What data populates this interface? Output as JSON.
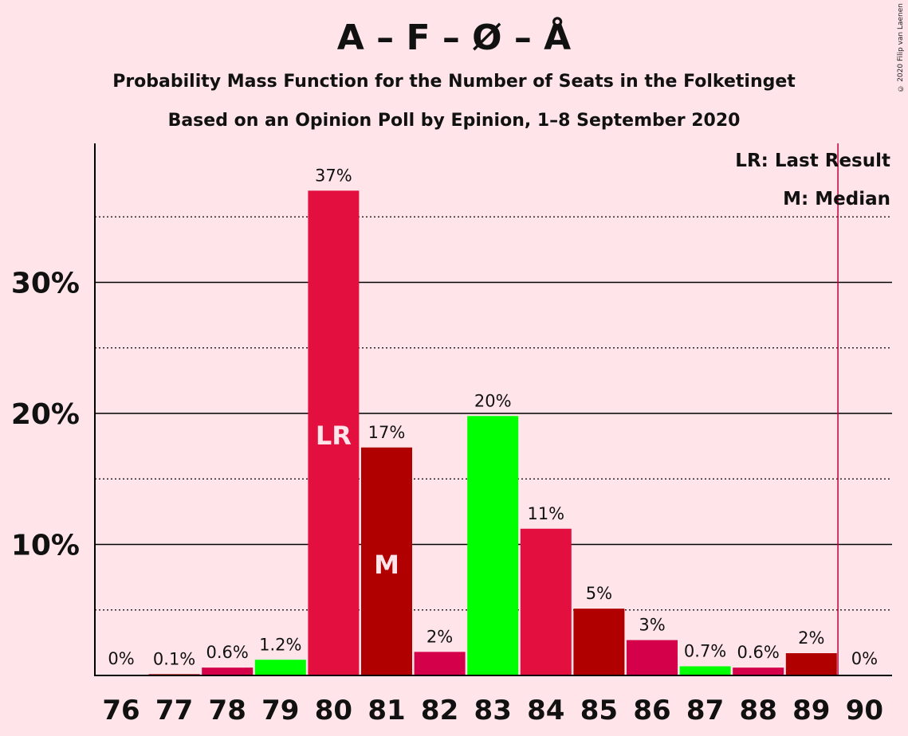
{
  "title": "A – F – Ø – Å",
  "subtitle1": "Probability Mass Function for the Number of Seats in the Folketinget",
  "subtitle2": "Based on an Opinion Poll by Epinion, 1–8 September 2020",
  "credit": "© 2020 Filip van Laenen",
  "legend": {
    "lr": "LR: Last Result",
    "median": "M: Median"
  },
  "colors": {
    "background": "#FFE5EA",
    "red": "#E3103F",
    "darkred": "#B00000",
    "green": "#00FF00",
    "crimson": "#D4004A",
    "lr_line": "#C0003C"
  },
  "chart_data": {
    "type": "bar",
    "categories": [
      "76",
      "77",
      "78",
      "79",
      "80",
      "81",
      "82",
      "83",
      "84",
      "85",
      "86",
      "87",
      "88",
      "89",
      "90"
    ],
    "values": [
      0,
      0.1,
      0.6,
      1.2,
      37,
      17.4,
      1.8,
      19.8,
      11.2,
      5.1,
      2.7,
      0.7,
      0.6,
      1.7,
      0
    ],
    "labels": [
      "0%",
      "0.1%",
      "0.6%",
      "1.2%",
      "37%",
      "17%",
      "2%",
      "20%",
      "11%",
      "5%",
      "3%",
      "0.7%",
      "0.6%",
      "2%",
      "0%"
    ],
    "bar_colors": [
      "#E3103F",
      "#B00000",
      "#D4004A",
      "#00FF00",
      "#E3103F",
      "#B00000",
      "#D4004A",
      "#00FF00",
      "#E3103F",
      "#B00000",
      "#D4004A",
      "#00FF00",
      "#D4004A",
      "#B00000",
      "#E3103F"
    ],
    "y_ticks": [
      10,
      20,
      30
    ],
    "y_tick_labels": [
      "10%",
      "20%",
      "30%"
    ],
    "ylim": [
      0,
      40
    ],
    "last_result": "80",
    "median": "81",
    "lr_marker": "LR",
    "median_marker": "M",
    "majority_line_after": "89"
  }
}
